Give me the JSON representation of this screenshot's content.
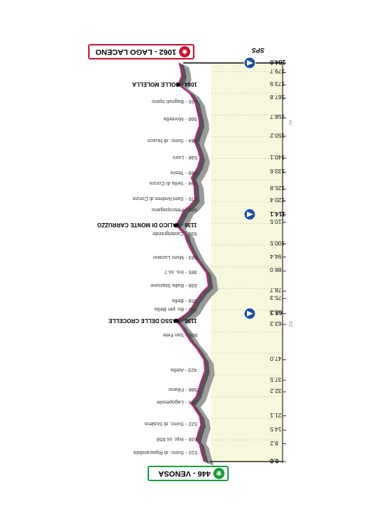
{
  "chart_data": {
    "type": "area",
    "orientation": "rotated-180",
    "x_unit": "km",
    "start": {
      "name": "VENOSA",
      "altitude": 446,
      "label": "446 - VENOSA"
    },
    "finish": {
      "name": "LAGO LACENO",
      "altitude": 1062,
      "label": "1062 - LAGO LACENO"
    },
    "sprint_label": "SPS",
    "side_letters": [
      "AV",
      "RZ"
    ],
    "km_ticks": [
      "0.0",
      "8.2",
      "14.5",
      "21.1",
      "32.2",
      "37.5",
      "47.0",
      "63.3",
      "68.3",
      "78.7",
      "75.3",
      "88.0",
      "94.4",
      "100.5",
      "110.5",
      "114.1",
      "120.4",
      "125.8",
      "133.6",
      "140.1",
      "150.2",
      "158.7",
      "167.8",
      "173.9",
      "179.7",
      "184.0"
    ],
    "checkpoints_km": [
      "68.3",
      "114.1",
      "184.0"
    ],
    "places": [
      {
        "km": 4,
        "label": "510 - Svinc. di Ripacandida",
        "bold": false
      },
      {
        "km": 10,
        "label": "636 - Inpr. ss.658",
        "bold": false
      },
      {
        "km": 17,
        "label": "522 - Svinc. di Scalera",
        "bold": false
      },
      {
        "km": 27,
        "label": "775 - Lagopesole",
        "bold": false
      },
      {
        "km": 33,
        "label": "588 - Filiano",
        "bold": false
      },
      {
        "km": 42,
        "label": "423 - Atella",
        "bold": false
      },
      {
        "km": 58,
        "label": "866 - San Fele",
        "bold": false
      },
      {
        "km": 65,
        "label": "1136 - PASSO DELLE CROCELLE",
        "bold": true
      },
      {
        "km": 70,
        "label": "786 - Bv. per Bella",
        "bold": false
      },
      {
        "km": 74,
        "label": "658 - Bella",
        "bold": false
      },
      {
        "km": 81,
        "label": "338 - Balla Stazione",
        "bold": false
      },
      {
        "km": 87,
        "label": "385 - Ins. ss.7",
        "bold": false
      },
      {
        "km": 94,
        "label": "663 - Muro Lucano",
        "bold": false
      },
      {
        "km": 105,
        "label": "930 - Castelgrande",
        "bold": false
      },
      {
        "km": 109,
        "label": "1136 - VALICO DI MONTE CARRUZZO",
        "bold": true
      },
      {
        "km": 116,
        "label": "940 - Pescopagano",
        "bold": false
      },
      {
        "km": 121,
        "label": "670 - Sant'Andrea di Conza",
        "bold": false
      },
      {
        "km": 128,
        "label": "694 - Sella di Conza",
        "bold": false
      },
      {
        "km": 133,
        "label": "689 - Teora",
        "bold": false
      },
      {
        "km": 140,
        "label": "538 - Lioni",
        "bold": false
      },
      {
        "km": 148,
        "label": "684 - Svinc. di Nusco",
        "bold": false
      },
      {
        "km": 158,
        "label": "566 - Montella",
        "bold": false
      },
      {
        "km": 166,
        "label": "665 - Bagnoli Irpino",
        "bold": false
      },
      {
        "km": 174,
        "label": "1084 - COLLE MOLELLA",
        "bold": true
      }
    ],
    "profile": {
      "x": [
        0,
        4,
        8,
        10,
        14,
        17,
        21,
        25,
        27,
        30,
        33,
        37,
        42,
        47,
        52,
        56,
        58,
        62,
        65,
        68,
        70,
        74,
        78,
        81,
        84,
        87,
        90,
        94,
        98,
        102,
        105,
        109,
        112,
        116,
        118,
        121,
        124,
        128,
        131,
        133,
        136,
        140,
        144,
        148,
        152,
        155,
        158,
        162,
        166,
        170,
        174,
        178,
        181,
        184
      ],
      "y": [
        446,
        510,
        560,
        636,
        580,
        522,
        560,
        700,
        775,
        640,
        588,
        520,
        423,
        450,
        620,
        800,
        866,
        1000,
        1136,
        900,
        786,
        658,
        500,
        338,
        360,
        385,
        500,
        663,
        780,
        880,
        930,
        1136,
        1050,
        940,
        800,
        670,
        680,
        694,
        760,
        689,
        600,
        538,
        600,
        684,
        620,
        560,
        566,
        620,
        665,
        800,
        1084,
        1000,
        1020,
        1062
      ]
    },
    "axis_ranges": {
      "x": [
        0,
        184
      ],
      "y": [
        300,
        1200
      ]
    },
    "legend": "none",
    "grid": true
  }
}
